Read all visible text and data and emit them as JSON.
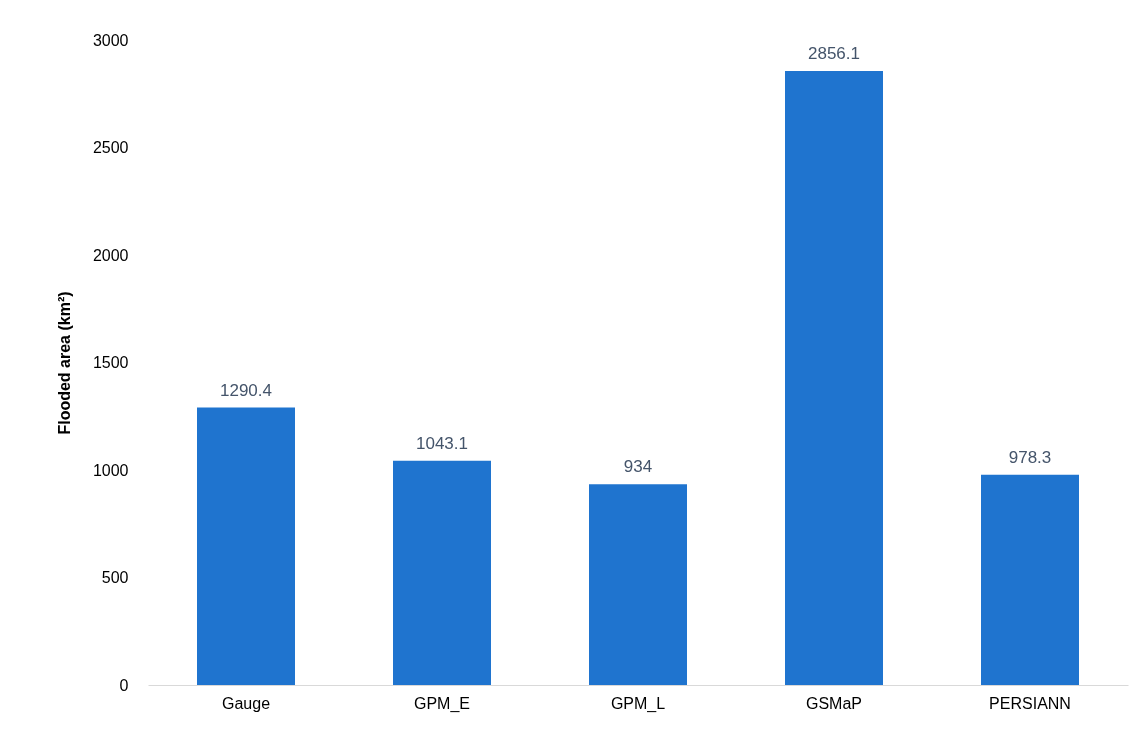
{
  "chart_data": {
    "type": "bar",
    "ylabel": "Flooded area (km²)",
    "categories": [
      "Gauge",
      "GPM_E",
      "GPM_L",
      "GSMaP",
      "PERSIANN"
    ],
    "values": [
      1290.4,
      1043.1,
      934,
      2856.1,
      978.3
    ],
    "color": "#1f74cf",
    "ylim": [
      0,
      3000
    ],
    "yticks": [
      0,
      500,
      1000,
      1500,
      2000,
      2500,
      3000
    ],
    "data_labels": true
  }
}
